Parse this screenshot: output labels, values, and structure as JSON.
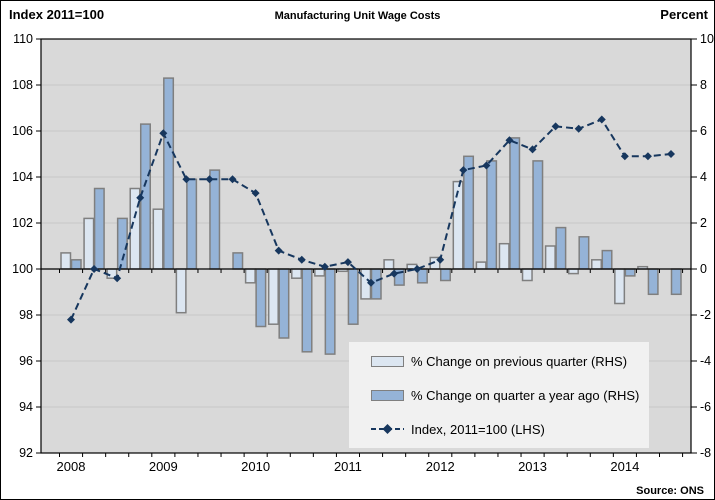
{
  "header": {
    "left_label": "Index 2011=100",
    "title": "Manufacturing Unit Wage Costs",
    "right_label": "Percent"
  },
  "footer": {
    "source": "Source: ONS"
  },
  "legend": {
    "items": [
      {
        "label": "% Change on previous quarter (RHS)",
        "swatch": "light-bar"
      },
      {
        "label": "% Change on quarter a year ago (RHS)",
        "swatch": "dark-bar"
      },
      {
        "label": "Index, 2011=100 (LHS)",
        "swatch": "dashed-line"
      }
    ]
  },
  "chart_data": {
    "type": "bar",
    "subtype": "dual-axis bar + dashed line",
    "title": "Manufacturing Unit Wage Costs",
    "quarters": [
      "2008 Q1",
      "2008 Q2",
      "2008 Q3",
      "2008 Q4",
      "2009 Q1",
      "2009 Q2",
      "2009 Q3",
      "2009 Q4",
      "2010 Q1",
      "2010 Q2",
      "2010 Q3",
      "2010 Q4",
      "2011 Q1",
      "2011 Q2",
      "2011 Q3",
      "2011 Q4",
      "2012 Q1",
      "2012 Q2",
      "2012 Q3",
      "2012 Q4",
      "2013 Q1",
      "2013 Q2",
      "2013 Q3",
      "2013 Q4",
      "2014 Q1",
      "2014 Q2",
      "2014 Q3"
    ],
    "series": [
      {
        "name": "% Change on previous quarter (RHS)",
        "type": "bar",
        "axis": "right",
        "color": "#dce6f1",
        "values": [
          0.7,
          2.2,
          -0.4,
          3.5,
          2.6,
          -1.9,
          0.0,
          0.0,
          -0.6,
          -2.4,
          -0.4,
          -0.3,
          -0.1,
          -1.3,
          0.4,
          0.2,
          0.5,
          3.8,
          0.3,
          1.1,
          -0.5,
          1.0,
          -0.2,
          0.4,
          -1.5,
          0.1,
          0.0
        ]
      },
      {
        "name": "% Change on quarter a year ago (RHS)",
        "type": "bar",
        "axis": "right",
        "color": "#95b3d7",
        "values": [
          0.4,
          3.5,
          2.2,
          6.3,
          8.3,
          3.9,
          4.3,
          0.7,
          -2.5,
          -3.0,
          -3.6,
          -3.7,
          -2.4,
          -1.3,
          -0.7,
          -0.6,
          -0.5,
          4.9,
          4.7,
          5.7,
          4.7,
          1.8,
          1.4,
          0.8,
          -0.3,
          -1.1,
          -1.1
        ]
      },
      {
        "name": "Index, 2011=100 (LHS)",
        "type": "line",
        "axis": "left",
        "color": "#17375e",
        "dashed": true,
        "marker": "diamond",
        "values": [
          97.8,
          100.0,
          99.6,
          103.1,
          105.9,
          103.9,
          103.9,
          103.9,
          103.3,
          100.8,
          100.4,
          100.1,
          100.3,
          99.4,
          99.8,
          100.0,
          100.4,
          104.3,
          104.5,
          105.6,
          105.2,
          106.2,
          106.1,
          106.5,
          104.9,
          104.9,
          105.0
        ]
      }
    ],
    "left_axis": {
      "label": "Index 2011=100",
      "min": 92,
      "max": 110,
      "ticks": [
        110,
        108,
        106,
        104,
        102,
        100,
        98,
        96,
        94,
        92
      ]
    },
    "right_axis": {
      "label": "Percent",
      "min": -8,
      "max": 10,
      "ticks": [
        10,
        8,
        6,
        4,
        2,
        0,
        -2,
        -4,
        -6,
        -8
      ]
    },
    "x_axis": {
      "tick_labels": [
        "2008",
        "2009",
        "2010",
        "2011",
        "2012",
        "2013",
        "2014"
      ],
      "minor_tick": "quarterly"
    },
    "gridlines": true,
    "plot_bg": "#d9d9d9",
    "gridline_color": "#c6c6c6",
    "bar_border_color": "#7f7f7f",
    "legend_bg": "#f1f1f1",
    "zero_baseline_left": 100,
    "zero_baseline_right": 0
  }
}
